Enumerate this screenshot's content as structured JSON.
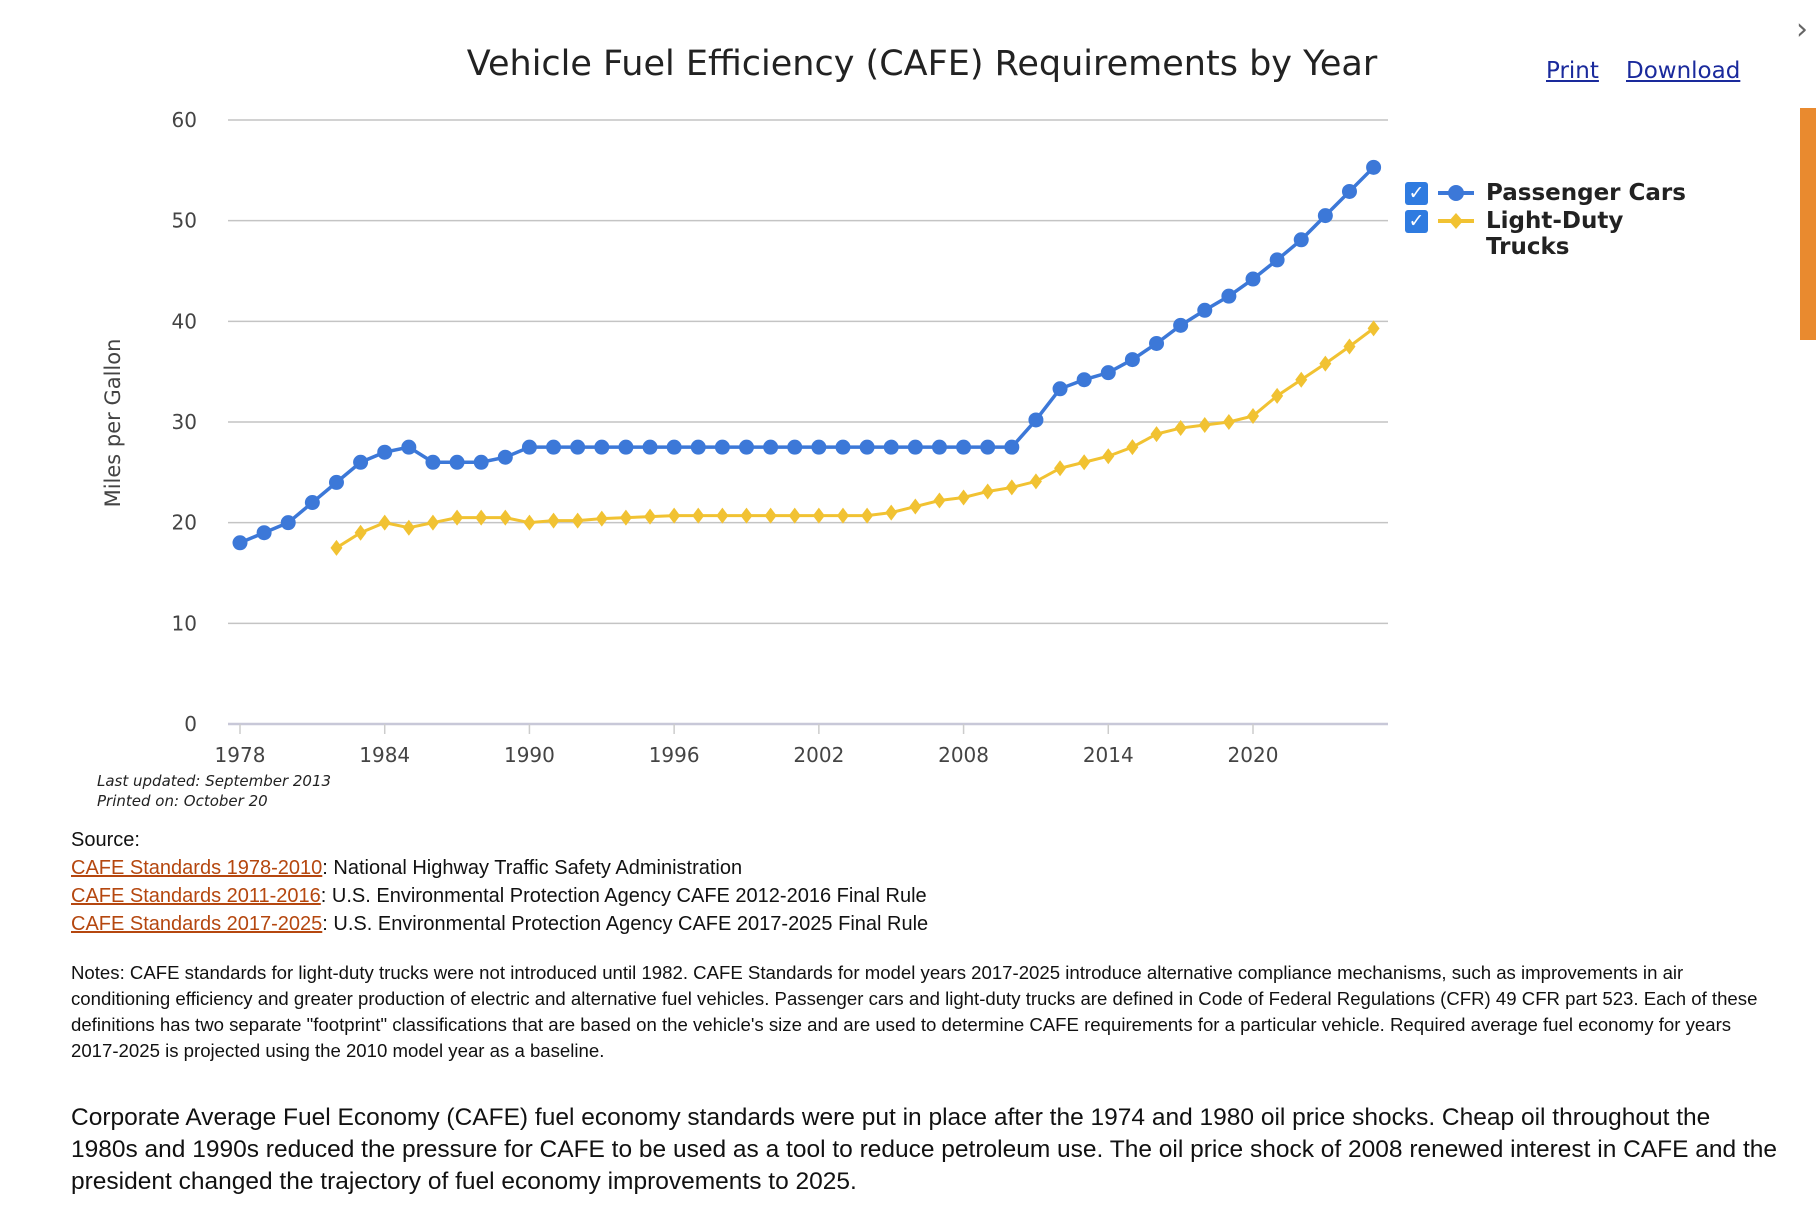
{
  "header": {
    "print_label": "Print",
    "download_label": "Download",
    "close_icon": "close-x-icon"
  },
  "chart_data": {
    "type": "line",
    "title": "Vehicle Fuel Efficiency (CAFE) Requirements by Year",
    "ylabel": "Miles per Gallon",
    "xlabel": "",
    "ylim": [
      0,
      60
    ],
    "yticks": [
      "0",
      "10",
      "20",
      "30",
      "40",
      "50",
      "60"
    ],
    "xticks": [
      "1978",
      "1984",
      "1990",
      "1996",
      "2002",
      "2008",
      "2014",
      "2020"
    ],
    "xlim": [
      1978,
      2025
    ],
    "grid": true,
    "legend_position": "right",
    "series": [
      {
        "name": "Passenger Cars",
        "color": "#3c78d8",
        "marker": "circle",
        "x": [
          1978,
          1979,
          1980,
          1981,
          1982,
          1983,
          1984,
          1985,
          1986,
          1987,
          1988,
          1989,
          1990,
          1991,
          1992,
          1993,
          1994,
          1995,
          1996,
          1997,
          1998,
          1999,
          2000,
          2001,
          2002,
          2003,
          2004,
          2005,
          2006,
          2007,
          2008,
          2009,
          2010,
          2011,
          2012,
          2013,
          2014,
          2015,
          2016,
          2017,
          2018,
          2019,
          2020,
          2021,
          2022,
          2023,
          2024,
          2025
        ],
        "values": [
          18.0,
          19.0,
          20.0,
          22.0,
          24.0,
          26.0,
          27.0,
          27.5,
          26.0,
          26.0,
          26.0,
          26.5,
          27.5,
          27.5,
          27.5,
          27.5,
          27.5,
          27.5,
          27.5,
          27.5,
          27.5,
          27.5,
          27.5,
          27.5,
          27.5,
          27.5,
          27.5,
          27.5,
          27.5,
          27.5,
          27.5,
          27.5,
          27.5,
          30.2,
          33.3,
          34.2,
          34.9,
          36.2,
          37.8,
          39.6,
          41.1,
          42.5,
          44.2,
          46.1,
          48.1,
          50.5,
          52.9,
          55.3
        ]
      },
      {
        "name": "Light-Duty Trucks",
        "color": "#f1c232",
        "marker": "diamond",
        "x": [
          1982,
          1983,
          1984,
          1985,
          1986,
          1987,
          1988,
          1989,
          1990,
          1991,
          1992,
          1993,
          1994,
          1995,
          1996,
          1997,
          1998,
          1999,
          2000,
          2001,
          2002,
          2003,
          2004,
          2005,
          2006,
          2007,
          2008,
          2009,
          2010,
          2011,
          2012,
          2013,
          2014,
          2015,
          2016,
          2017,
          2018,
          2019,
          2020,
          2021,
          2022,
          2023,
          2024,
          2025
        ],
        "values": [
          17.5,
          19.0,
          20.0,
          19.5,
          20.0,
          20.5,
          20.5,
          20.5,
          20.0,
          20.2,
          20.2,
          20.4,
          20.5,
          20.6,
          20.7,
          20.7,
          20.7,
          20.7,
          20.7,
          20.7,
          20.7,
          20.7,
          20.7,
          21.0,
          21.6,
          22.2,
          22.5,
          23.1,
          23.5,
          24.1,
          25.4,
          26.0,
          26.6,
          27.5,
          28.8,
          29.4,
          29.7,
          30.0,
          30.6,
          32.6,
          34.2,
          35.8,
          37.5,
          39.3
        ]
      }
    ]
  },
  "legend": {
    "items": [
      {
        "label": "Passenger Cars",
        "checked": true
      },
      {
        "label": "Light-Duty Trucks",
        "checked": true
      }
    ],
    "checkmark": "✓"
  },
  "footnotes": {
    "last_updated": "Last updated: September 2013",
    "printed_on": "Printed on: October 20"
  },
  "source": {
    "label": "Source:",
    "items": [
      {
        "link": "CAFE Standards 1978-2010",
        "text": ": National Highway Traffic Safety Administration"
      },
      {
        "link": "CAFE Standards 2011-2016",
        "text": ": U.S. Environmental Protection Agency CAFE 2012-2016 Final Rule"
      },
      {
        "link": "CAFE Standards 2017-2025",
        "text": ": U.S. Environmental Protection Agency CAFE 2017-2025 Final Rule"
      }
    ]
  },
  "notes": "Notes: CAFE standards for light-duty trucks were not introduced until 1982. CAFE Standards for model years 2017-2025 introduce alternative compliance mechanisms, such as improvements in air conditioning efficiency and greater production of electric and alternative fuel vehicles. Passenger cars and light-duty trucks are defined in Code of Federal Regulations (CFR) 49 CFR part 523. Each of these definitions has two separate \"footprint\" classifications that are based on the vehicle's size and are used to determine CAFE requirements for a particular vehicle. Required average fuel economy for years 2017-2025 is projected using the 2010 model year as a baseline.",
  "description": "Corporate Average Fuel Economy (CAFE) fuel economy standards were put in place after the 1974 and 1980 oil price shocks. Cheap oil throughout the 1980s and 1990s reduced the pressure for CAFE to be used as a tool to reduce petroleum use. The oil price shock of 2008 renewed interest in CAFE and the president changed the trajectory of fuel economy improvements to 2025."
}
